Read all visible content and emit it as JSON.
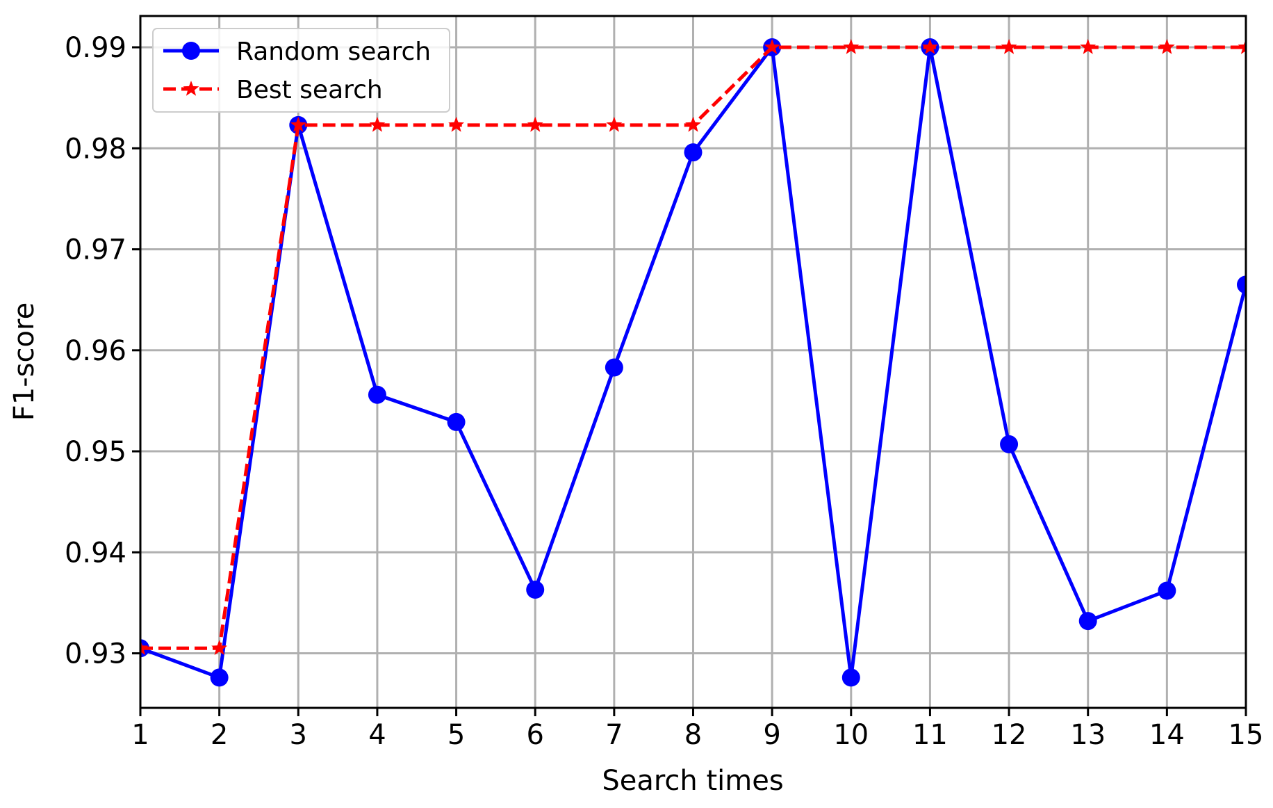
{
  "chart_data": {
    "type": "line",
    "title": "",
    "xlabel": "Search times",
    "ylabel": "F1-score",
    "x": [
      1,
      2,
      3,
      4,
      5,
      6,
      7,
      8,
      9,
      10,
      11,
      12,
      13,
      14,
      15
    ],
    "xlim": [
      1,
      15
    ],
    "ylim": [
      0.9246,
      0.9931
    ],
    "xticks": [
      "1",
      "2",
      "3",
      "4",
      "5",
      "6",
      "7",
      "8",
      "9",
      "10",
      "11",
      "12",
      "13",
      "14",
      "15"
    ],
    "yticks": [
      "0.93",
      "0.94",
      "0.95",
      "0.96",
      "0.97",
      "0.98",
      "0.99"
    ],
    "grid": true,
    "legend_position": "top-left",
    "series": [
      {
        "name": "Random search",
        "color": "#0000ff",
        "style": "solid",
        "marker": "circle",
        "values": [
          0.9305,
          0.9276,
          0.9823,
          0.9556,
          0.9529,
          0.9363,
          0.9583,
          0.9796,
          0.99,
          0.9276,
          0.99,
          0.9507,
          0.9332,
          0.9362,
          0.9665
        ]
      },
      {
        "name": "Best search",
        "color": "#ff0000",
        "style": "dashed",
        "marker": "star",
        "values": [
          0.9305,
          0.9305,
          0.9823,
          0.9823,
          0.9823,
          0.9823,
          0.9823,
          0.9823,
          0.99,
          0.99,
          0.99,
          0.99,
          0.99,
          0.99,
          0.99
        ]
      }
    ]
  }
}
